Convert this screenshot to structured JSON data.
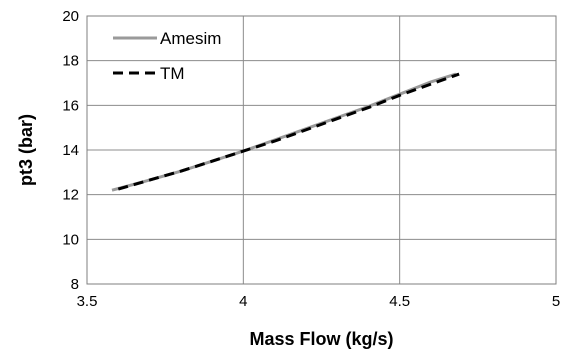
{
  "chart_data": {
    "type": "line",
    "xlabel": "Mass Flow (kg/s)",
    "ylabel": "pt3 (bar)",
    "xlim": [
      3.5,
      5
    ],
    "ylim": [
      8,
      20
    ],
    "xticks": [
      3.5,
      4,
      4.5,
      5
    ],
    "yticks": [
      8,
      10,
      12,
      14,
      16,
      18,
      20
    ],
    "xtick_labels": [
      "3.5",
      "4",
      "4.5",
      "5"
    ],
    "ytick_labels": [
      "8",
      "10",
      "12",
      "14",
      "16",
      "18",
      "20"
    ],
    "grid": "vertical and horizontal major gridlines",
    "legend_position": "top-left",
    "series": [
      {
        "name": "Amesim",
        "color": "#9a9a9a",
        "style": "solid",
        "x": [
          3.58,
          3.7,
          3.8,
          3.9,
          4.0,
          4.1,
          4.2,
          4.3,
          4.4,
          4.5,
          4.6,
          4.68
        ],
        "y": [
          12.2,
          12.65,
          13.05,
          13.5,
          13.95,
          14.45,
          14.95,
          15.45,
          15.95,
          16.5,
          17.05,
          17.4
        ]
      },
      {
        "name": "TM",
        "color": "#000000",
        "style": "dashed",
        "x": [
          3.6,
          3.7,
          3.8,
          3.9,
          4.0,
          4.1,
          4.2,
          4.3,
          4.4,
          4.5,
          4.6,
          4.69
        ],
        "y": [
          12.25,
          12.65,
          13.05,
          13.5,
          13.95,
          14.4,
          14.9,
          15.4,
          15.9,
          16.45,
          16.95,
          17.4
        ]
      }
    ]
  }
}
